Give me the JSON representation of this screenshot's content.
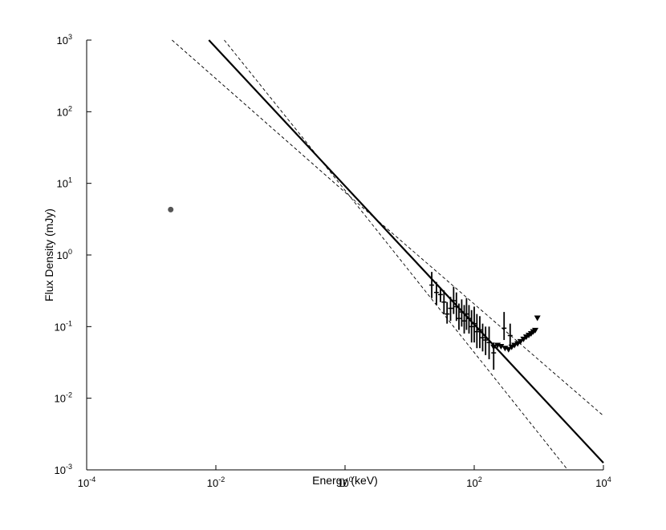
{
  "chart_data": {
    "type": "scatter",
    "title": "",
    "xlabel": "Energy (keV)",
    "ylabel": "Flux Density (mJy)",
    "xscale": "log",
    "yscale": "log",
    "xlim": [
      0.0001,
      10000
    ],
    "ylim": [
      0.001,
      1000
    ],
    "grid": false,
    "x_ticks": [
      {
        "base": "10",
        "exp": "-4",
        "value": 0.0001
      },
      {
        "base": "10",
        "exp": "-2",
        "value": 0.01
      },
      {
        "base": "10",
        "exp": "0",
        "value": 1
      },
      {
        "base": "10",
        "exp": "2",
        "value": 100
      },
      {
        "base": "10",
        "exp": "4",
        "value": 10000
      }
    ],
    "y_ticks": [
      {
        "base": "10",
        "exp": "-3",
        "value": 0.001
      },
      {
        "base": "10",
        "exp": "-2",
        "value": 0.01
      },
      {
        "base": "10",
        "exp": "-1",
        "value": 0.1
      },
      {
        "base": "10",
        "exp": "0",
        "value": 1
      },
      {
        "base": "10",
        "exp": "1",
        "value": 10
      },
      {
        "base": "10",
        "exp": "2",
        "value": 100
      },
      {
        "base": "10",
        "exp": "3",
        "value": 1000
      }
    ],
    "series": [
      {
        "kind": "model-line",
        "style": "solid",
        "points": [
          [
            0.0078,
            1000
          ],
          [
            10000,
            0.00125
          ]
        ]
      },
      {
        "kind": "model-bound",
        "style": "dashed",
        "points": [
          [
            0.0021,
            1000
          ],
          [
            1.2,
            6.5
          ],
          [
            10000,
            0.0057
          ]
        ]
      },
      {
        "kind": "model-bound",
        "style": "dashed",
        "points": [
          [
            0.0135,
            1000
          ],
          [
            1.2,
            6.5
          ],
          [
            2800,
            0.001
          ]
        ]
      },
      {
        "kind": "optical-point",
        "marker": "circle",
        "color": "#555555",
        "points": [
          [
            0.002,
            4.3
          ]
        ]
      },
      {
        "kind": "detections",
        "marker": "errorbar",
        "points": [
          {
            "x": 22,
            "y": 0.38,
            "lo": 0.25,
            "hi": 0.58
          },
          {
            "x": 26,
            "y": 0.3,
            "lo": 0.2,
            "hi": 0.42
          },
          {
            "x": 30,
            "y": 0.28,
            "lo": 0.22,
            "hi": 0.35
          },
          {
            "x": 34,
            "y": 0.22,
            "lo": 0.15,
            "hi": 0.32
          },
          {
            "x": 38,
            "y": 0.15,
            "lo": 0.11,
            "hi": 0.22
          },
          {
            "x": 43,
            "y": 0.18,
            "lo": 0.12,
            "hi": 0.26
          },
          {
            "x": 48,
            "y": 0.23,
            "lo": 0.15,
            "hi": 0.36
          },
          {
            "x": 53,
            "y": 0.19,
            "lo": 0.12,
            "hi": 0.3
          },
          {
            "x": 58,
            "y": 0.13,
            "lo": 0.09,
            "hi": 0.21
          },
          {
            "x": 64,
            "y": 0.16,
            "lo": 0.1,
            "hi": 0.24
          },
          {
            "x": 70,
            "y": 0.12,
            "lo": 0.08,
            "hi": 0.2
          },
          {
            "x": 76,
            "y": 0.15,
            "lo": 0.09,
            "hi": 0.25
          },
          {
            "x": 83,
            "y": 0.13,
            "lo": 0.08,
            "hi": 0.2
          },
          {
            "x": 91,
            "y": 0.1,
            "lo": 0.06,
            "hi": 0.17
          },
          {
            "x": 100,
            "y": 0.11,
            "lo": 0.06,
            "hi": 0.19
          },
          {
            "x": 110,
            "y": 0.085,
            "lo": 0.05,
            "hi": 0.15
          },
          {
            "x": 122,
            "y": 0.09,
            "lo": 0.05,
            "hi": 0.14
          },
          {
            "x": 135,
            "y": 0.07,
            "lo": 0.045,
            "hi": 0.11
          },
          {
            "x": 150,
            "y": 0.065,
            "lo": 0.04,
            "hi": 0.1
          },
          {
            "x": 170,
            "y": 0.06,
            "lo": 0.035,
            "hi": 0.1
          },
          {
            "x": 200,
            "y": 0.043,
            "lo": 0.025,
            "hi": 0.06
          },
          {
            "x": 290,
            "y": 0.095,
            "lo": 0.065,
            "hi": 0.16
          },
          {
            "x": 360,
            "y": 0.075,
            "lo": 0.055,
            "hi": 0.11
          }
        ]
      },
      {
        "kind": "upper-limits",
        "marker": "triangle-down",
        "points": [
          [
            200,
            0.052
          ],
          [
            230,
            0.055
          ],
          [
            260,
            0.053
          ],
          [
            300,
            0.05
          ],
          [
            340,
            0.048
          ],
          [
            380,
            0.052
          ],
          [
            420,
            0.055
          ],
          [
            470,
            0.058
          ],
          [
            520,
            0.062
          ],
          [
            580,
            0.067
          ],
          [
            640,
            0.072
          ],
          [
            700,
            0.076
          ],
          [
            760,
            0.08
          ],
          [
            820,
            0.085
          ],
          [
            880,
            0.089
          ],
          [
            950,
            0.132
          ]
        ]
      }
    ]
  }
}
